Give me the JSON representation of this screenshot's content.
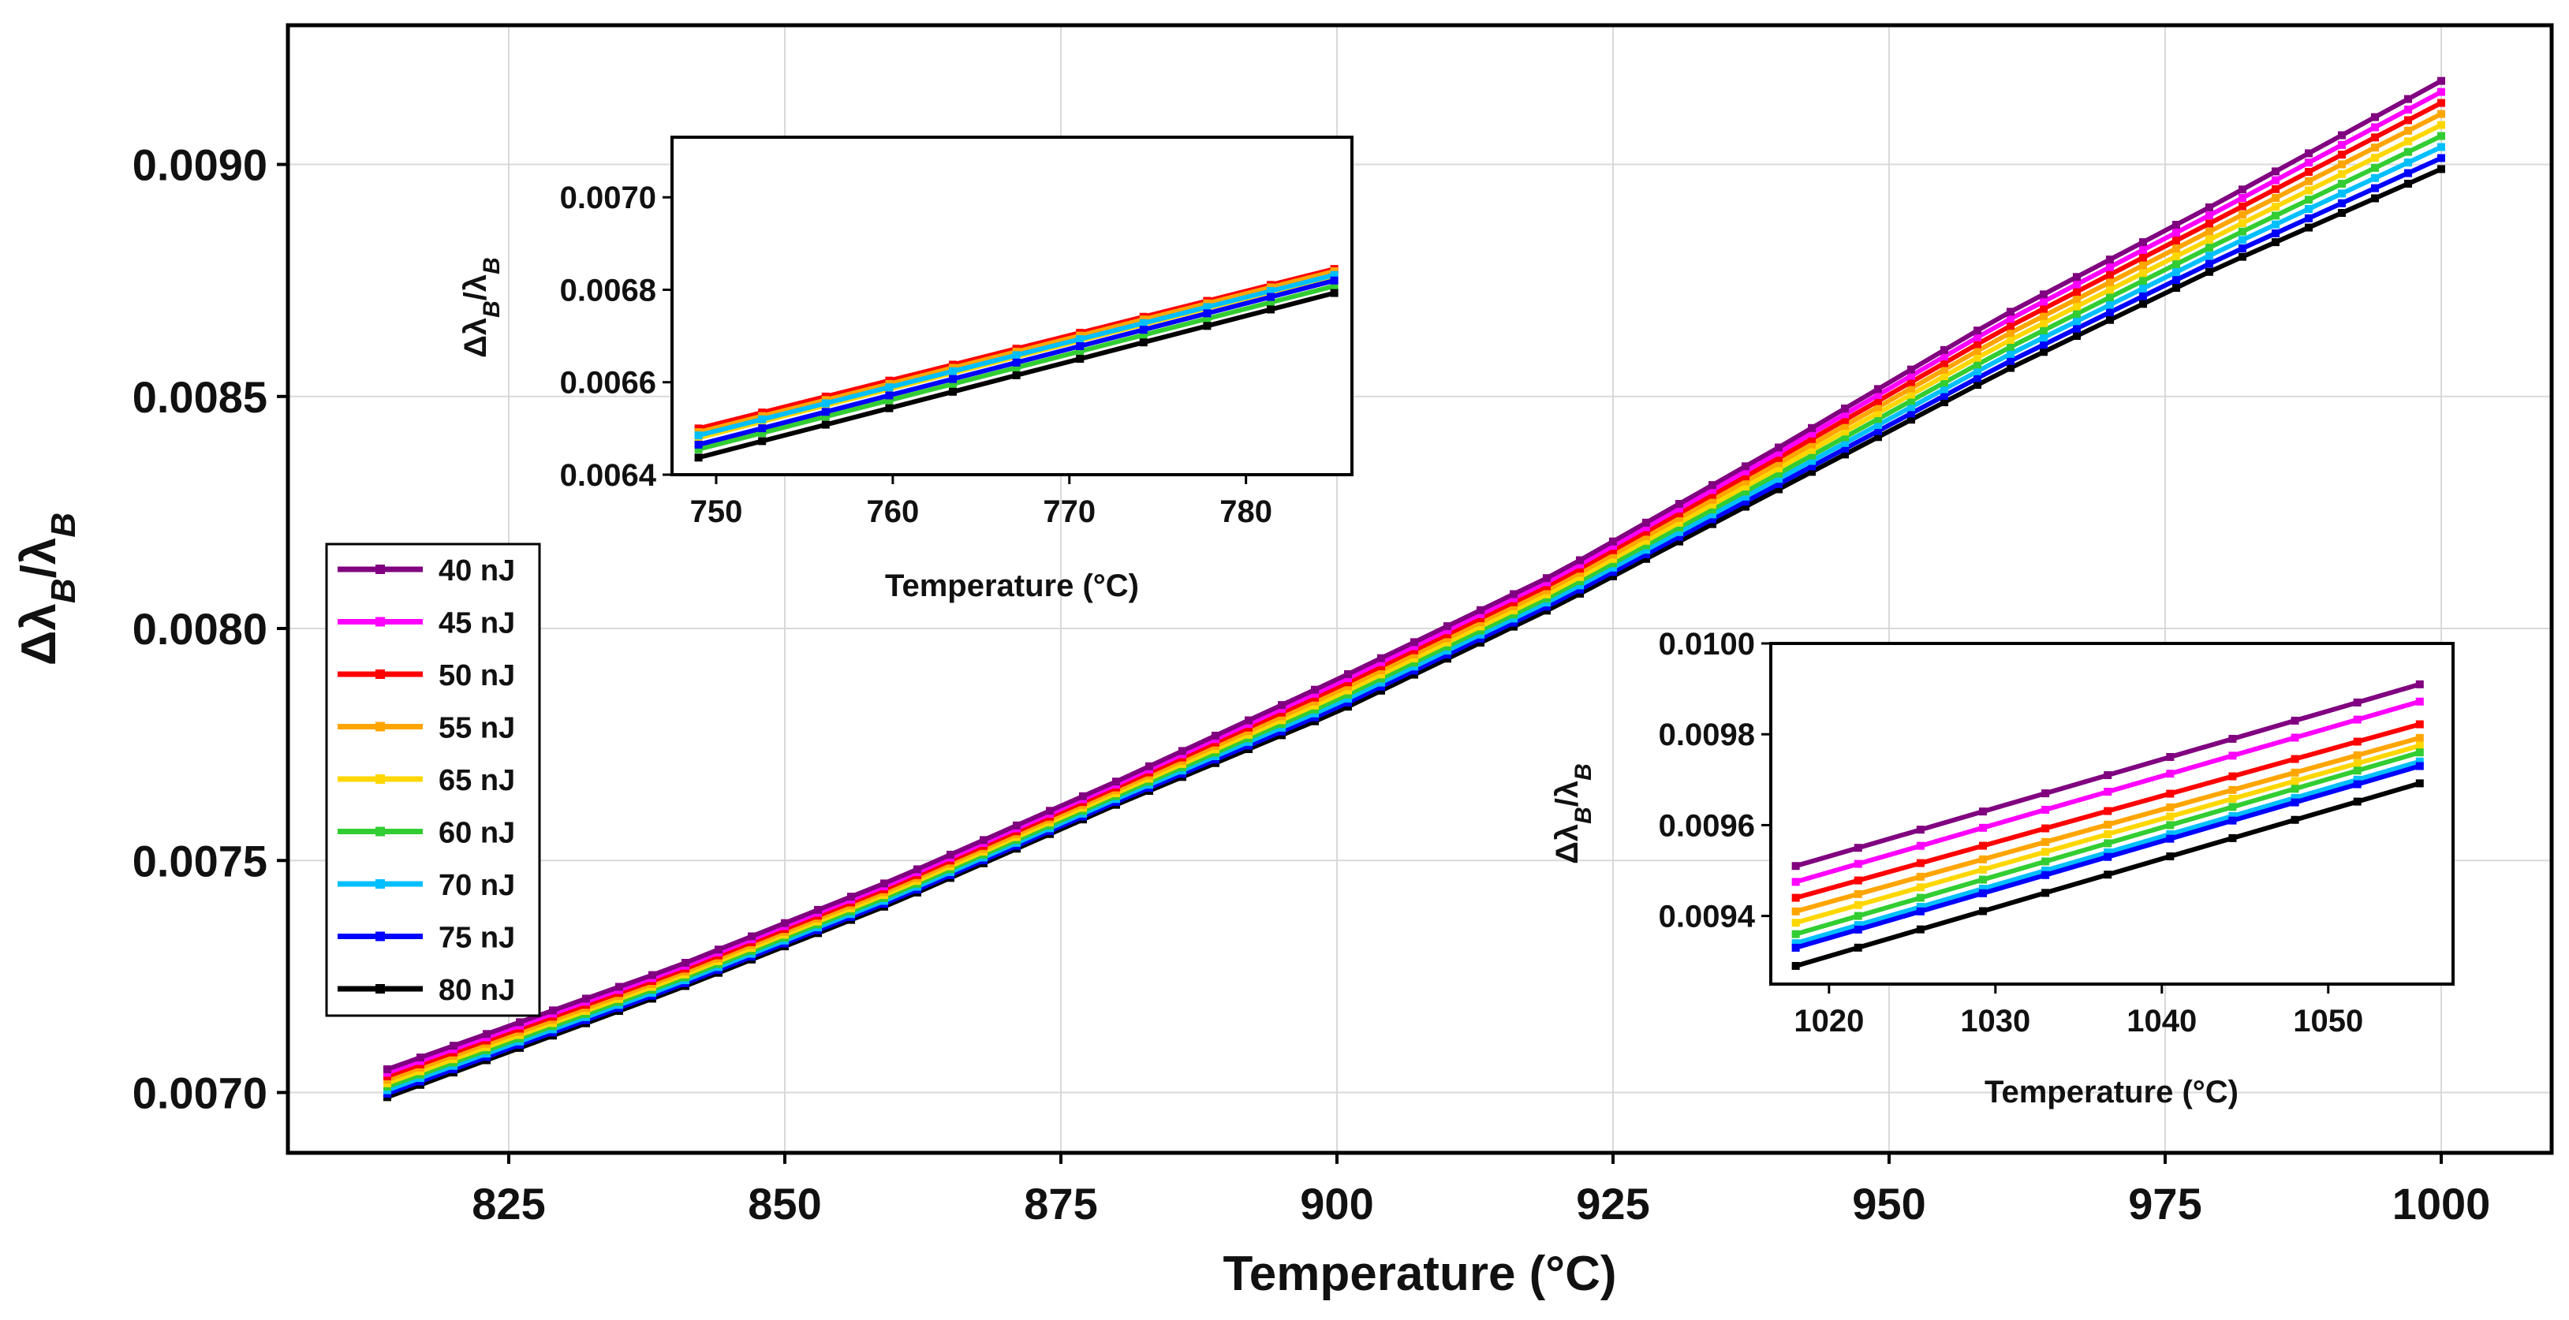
{
  "chart_data": [
    {
      "id": "main",
      "type": "line",
      "title": "",
      "xlabel": "Temperature (°C)",
      "ylabel": "Δλ_B/λ_B",
      "xlim": [
        805,
        1010
      ],
      "ylim": [
        0.00687,
        0.0093
      ],
      "xticks": [
        "825",
        "850",
        "875",
        "900",
        "925",
        "950",
        "975",
        "1000"
      ],
      "yticks": [
        "0.0070",
        "0.0075",
        "0.0080",
        "0.0085",
        "0.0090"
      ],
      "grid": true,
      "legend": "center-left",
      "x_start": 814,
      "x_end": 1000,
      "x_step": 3,
      "points": {
        "x": [
          814,
          840,
          860,
          880,
          900,
          920,
          940,
          960,
          980,
          1000
        ],
        "top": [
          0.00705,
          0.00727,
          0.00746,
          0.00767,
          0.00789,
          0.00812,
          0.00839,
          0.00867,
          0.00892,
          0.00918
        ],
        "bottom": [
          0.00699,
          0.00722,
          0.00741,
          0.00762,
          0.00782,
          0.00805,
          0.0083,
          0.00855,
          0.00878,
          0.00899
        ]
      },
      "end_offsets_top_to_bottom": [
        "40 nJ",
        "45 nJ",
        "50 nJ",
        "55 nJ",
        "65 nJ",
        "60 nJ",
        "70 nJ",
        "75 nJ",
        "80 nJ"
      ]
    },
    {
      "id": "inset_low",
      "type": "line",
      "xlabel": "Temperature (°C)",
      "ylabel": "Δλ_B/λ_B",
      "xlim": [
        747.5,
        786
      ],
      "ylim": [
        0.0064,
        0.00713
      ],
      "xticks": [
        "750",
        "760",
        "770",
        "780"
      ],
      "yticks": [
        "0.0064",
        "0.0066",
        "0.0068",
        "0.0070"
      ],
      "grid": false,
      "x_start": 749,
      "x_end": 785,
      "x_step": 3.6,
      "series": [
        {
          "name": "40 nJ",
          "start": 0.006495,
          "end": 0.006842
        },
        {
          "name": "45 nJ",
          "start": 0.00649,
          "end": 0.006838
        },
        {
          "name": "50 nJ",
          "start": 0.0065,
          "end": 0.006845
        },
        {
          "name": "55 nJ",
          "start": 0.006492,
          "end": 0.00684
        },
        {
          "name": "65 nJ",
          "start": 0.00648,
          "end": 0.00683
        },
        {
          "name": "60 nJ",
          "start": 0.006455,
          "end": 0.006808
        },
        {
          "name": "70 nJ",
          "start": 0.006485,
          "end": 0.006832
        },
        {
          "name": "75 nJ",
          "start": 0.006465,
          "end": 0.00682
        },
        {
          "name": "80 nJ",
          "start": 0.006437,
          "end": 0.006793
        }
      ]
    },
    {
      "id": "inset_high",
      "type": "line",
      "xlabel": "Temperature (°C)",
      "ylabel": "Δλ_B/λ_B",
      "xlim": [
        1016.5,
        1057.5
      ],
      "ylim": [
        0.00925,
        0.01
      ],
      "xticks": [
        "1020",
        "1030",
        "1040",
        "1050"
      ],
      "yticks": [
        "0.0094",
        "0.0096",
        "0.0098",
        "0.0100"
      ],
      "grid": false,
      "x_start": 1018,
      "x_end": 1055.5,
      "x_step": 3.75,
      "series": [
        {
          "name": "40 nJ",
          "start": 0.00951,
          "end": 0.00991
        },
        {
          "name": "45 nJ",
          "start": 0.009475,
          "end": 0.009872
        },
        {
          "name": "50 nJ",
          "start": 0.00944,
          "end": 0.009822
        },
        {
          "name": "55 nJ",
          "start": 0.00941,
          "end": 0.009792
        },
        {
          "name": "65 nJ",
          "start": 0.009385,
          "end": 0.009775
        },
        {
          "name": "60 nJ",
          "start": 0.00936,
          "end": 0.00976
        },
        {
          "name": "70 nJ",
          "start": 0.00934,
          "end": 0.00974
        },
        {
          "name": "75 nJ",
          "start": 0.00933,
          "end": 0.00973
        },
        {
          "name": "80 nJ",
          "start": 0.00929,
          "end": 0.009692
        }
      ]
    }
  ],
  "legend": [
    {
      "label": "40 nJ",
      "color": "#800080"
    },
    {
      "label": "45 nJ",
      "color": "#ff00ff"
    },
    {
      "label": "50 nJ",
      "color": "#ff0000"
    },
    {
      "label": "55 nJ",
      "color": "#ffa500"
    },
    {
      "label": "65 nJ",
      "color": "#ffd700"
    },
    {
      "label": "60 nJ",
      "color": "#32cd32"
    },
    {
      "label": "70 nJ",
      "color": "#00bfff"
    },
    {
      "label": "75 nJ",
      "color": "#0000ff"
    },
    {
      "label": "80 nJ",
      "color": "#000000"
    }
  ]
}
